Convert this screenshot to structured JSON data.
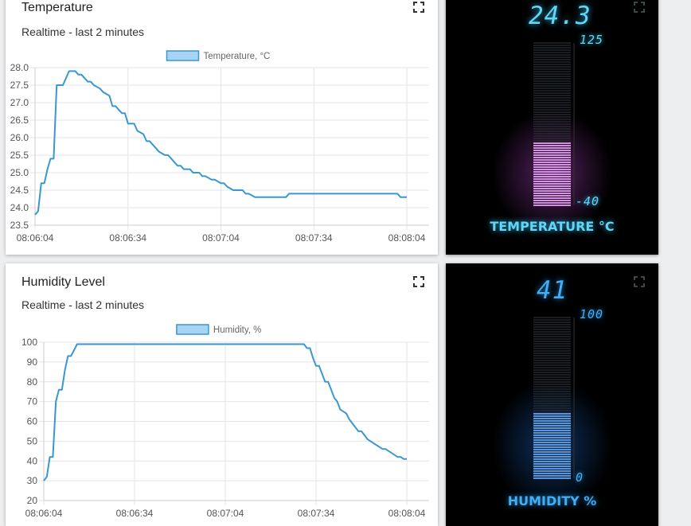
{
  "colors": {
    "line": "#3a97cf",
    "legend_fill": "#a7d4f3",
    "grid": "#e4e4ee",
    "temp_gauge": "#e9a4f6",
    "temp_text": "#63d6f4",
    "hum_gauge": "#5ea4f6",
    "hum_text": "#44aef2"
  },
  "temperature_card": {
    "title": "Temperature",
    "subtitle": "Realtime - last 2 minutes",
    "fullscreen_icon": "fullscreen-icon"
  },
  "humidity_card": {
    "title": "Humidity Level",
    "subtitle": "Realtime - last 2 minutes",
    "fullscreen_icon": "fullscreen-icon"
  },
  "temperature_gauge": {
    "value": "24.3",
    "max": "125",
    "min": "-40",
    "label": "TEMPERATURE °C",
    "fill_fraction": 0.392
  },
  "humidity_gauge": {
    "value": "41",
    "max": "100",
    "min": "0",
    "label": "HUMIDITY %",
    "fill_fraction": 0.41
  },
  "chart_data": [
    {
      "type": "line",
      "legend": [
        "Temperature, °C"
      ],
      "x_ticks": [
        "08:06:04",
        "08:06:34",
        "08:07:04",
        "08:07:34",
        "08:08:04"
      ],
      "x_range_seconds": [
        0,
        120
      ],
      "y_ticks": [
        "23.5",
        "24.0",
        "24.5",
        "25.0",
        "25.5",
        "26.0",
        "26.5",
        "27.0",
        "27.5",
        "28.0"
      ],
      "ylim": [
        23.5,
        28.0
      ],
      "grid": true,
      "series": [
        {
          "name": "Temperature, °C",
          "x": [
            0,
            1,
            2,
            3,
            4,
            5,
            6,
            7,
            9,
            10,
            11,
            13,
            14,
            15,
            17,
            18,
            19,
            21,
            22,
            24,
            25,
            26,
            28,
            29,
            30,
            32,
            33,
            35,
            36,
            37,
            39,
            40,
            42,
            43,
            44,
            46,
            47,
            48,
            50,
            51,
            53,
            54,
            55,
            57,
            58,
            60,
            61,
            62,
            64,
            65,
            67,
            68,
            69,
            71,
            72,
            74,
            75,
            76,
            78,
            79,
            81,
            82,
            83,
            85,
            86,
            88,
            89,
            90,
            92,
            93,
            95,
            96,
            97,
            99,
            100,
            102,
            103,
            104,
            106,
            107,
            109,
            110,
            111,
            113,
            114,
            116,
            117,
            118,
            120
          ],
          "y": [
            23.8,
            23.9,
            24.7,
            24.7,
            25.1,
            25.4,
            25.4,
            27.5,
            27.5,
            27.7,
            27.9,
            27.9,
            27.8,
            27.8,
            27.6,
            27.6,
            27.5,
            27.4,
            27.3,
            27.2,
            26.9,
            26.9,
            26.7,
            26.7,
            26.4,
            26.4,
            26.2,
            26.1,
            25.9,
            25.9,
            25.7,
            25.6,
            25.5,
            25.5,
            25.4,
            25.2,
            25.2,
            25.1,
            25.1,
            25.0,
            25.0,
            24.9,
            24.9,
            24.8,
            24.8,
            24.7,
            24.7,
            24.6,
            24.5,
            24.5,
            24.5,
            24.4,
            24.4,
            24.3,
            24.3,
            24.3,
            24.3,
            24.3,
            24.3,
            24.3,
            24.3,
            24.4,
            24.4,
            24.4,
            24.4,
            24.4,
            24.4,
            24.4,
            24.4,
            24.4,
            24.4,
            24.4,
            24.4,
            24.4,
            24.4,
            24.4,
            24.4,
            24.4,
            24.4,
            24.4,
            24.4,
            24.4,
            24.4,
            24.4,
            24.4,
            24.4,
            24.4,
            24.3,
            24.3
          ]
        }
      ]
    },
    {
      "type": "line",
      "legend": [
        "Humidity, %"
      ],
      "x_ticks": [
        "08:06:04",
        "08:06:34",
        "08:07:04",
        "08:07:34",
        "08:08:04"
      ],
      "x_range_seconds": [
        0,
        120
      ],
      "y_ticks": [
        "20",
        "30",
        "40",
        "50",
        "60",
        "70",
        "80",
        "90",
        "100"
      ],
      "ylim": [
        20,
        100
      ],
      "grid": true,
      "series": [
        {
          "name": "Humidity, %",
          "x": [
            0,
            1,
            2,
            3,
            4,
            5,
            6,
            7,
            8,
            9,
            10,
            11,
            12,
            13,
            14,
            15,
            30,
            60,
            85,
            86,
            87,
            88,
            89,
            90,
            91,
            92,
            93,
            94,
            95,
            96,
            97,
            98,
            99,
            100,
            101,
            102,
            103,
            104,
            105,
            106,
            107,
            108,
            109,
            110,
            111,
            112,
            113,
            114,
            115,
            116,
            117,
            118,
            119,
            120
          ],
          "y": [
            30,
            32,
            42,
            42,
            70,
            76,
            76,
            86,
            93,
            93,
            96,
            99,
            99,
            99,
            99,
            99,
            99,
            99,
            99,
            99,
            97,
            97,
            92,
            88,
            88,
            84,
            80,
            80,
            76,
            72,
            70,
            66,
            65,
            64,
            61,
            59,
            57,
            55,
            55,
            53,
            51,
            50,
            49,
            48,
            47,
            46,
            46,
            45,
            44,
            43,
            42,
            42,
            41,
            41
          ]
        }
      ]
    }
  ]
}
